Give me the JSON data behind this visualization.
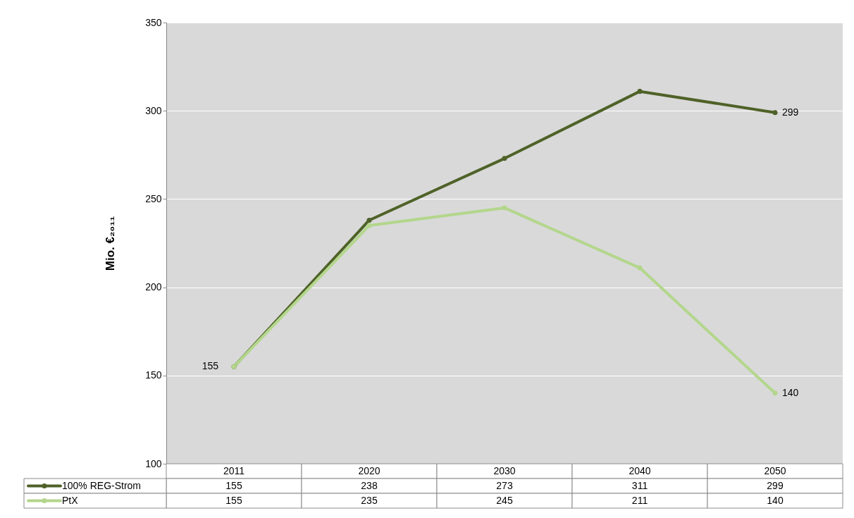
{
  "chart_data": {
    "type": "line",
    "ylabel": "Mio. €₂₀₁₁",
    "categories": [
      "2011",
      "2020",
      "2030",
      "2040",
      "2050"
    ],
    "series": [
      {
        "name": "100% REG-Strom",
        "color": "#4f6228",
        "values": [
          155,
          238,
          273,
          311,
          299
        ]
      },
      {
        "name": "PtX",
        "color": "#b3d68c",
        "values": [
          155,
          235,
          245,
          211,
          140
        ]
      }
    ],
    "ylim": [
      100,
      350
    ],
    "yticks": [
      100,
      150,
      200,
      250,
      300,
      350
    ],
    "grid": "y",
    "legend": "bottom",
    "marker": "circle",
    "data_labels": true,
    "annotations": [
      {
        "text": "155",
        "x": "2011",
        "y": 155
      },
      {
        "text": "299",
        "x": "2050",
        "y": 299
      },
      {
        "text": "140",
        "x": "2050",
        "y": 140
      }
    ]
  }
}
